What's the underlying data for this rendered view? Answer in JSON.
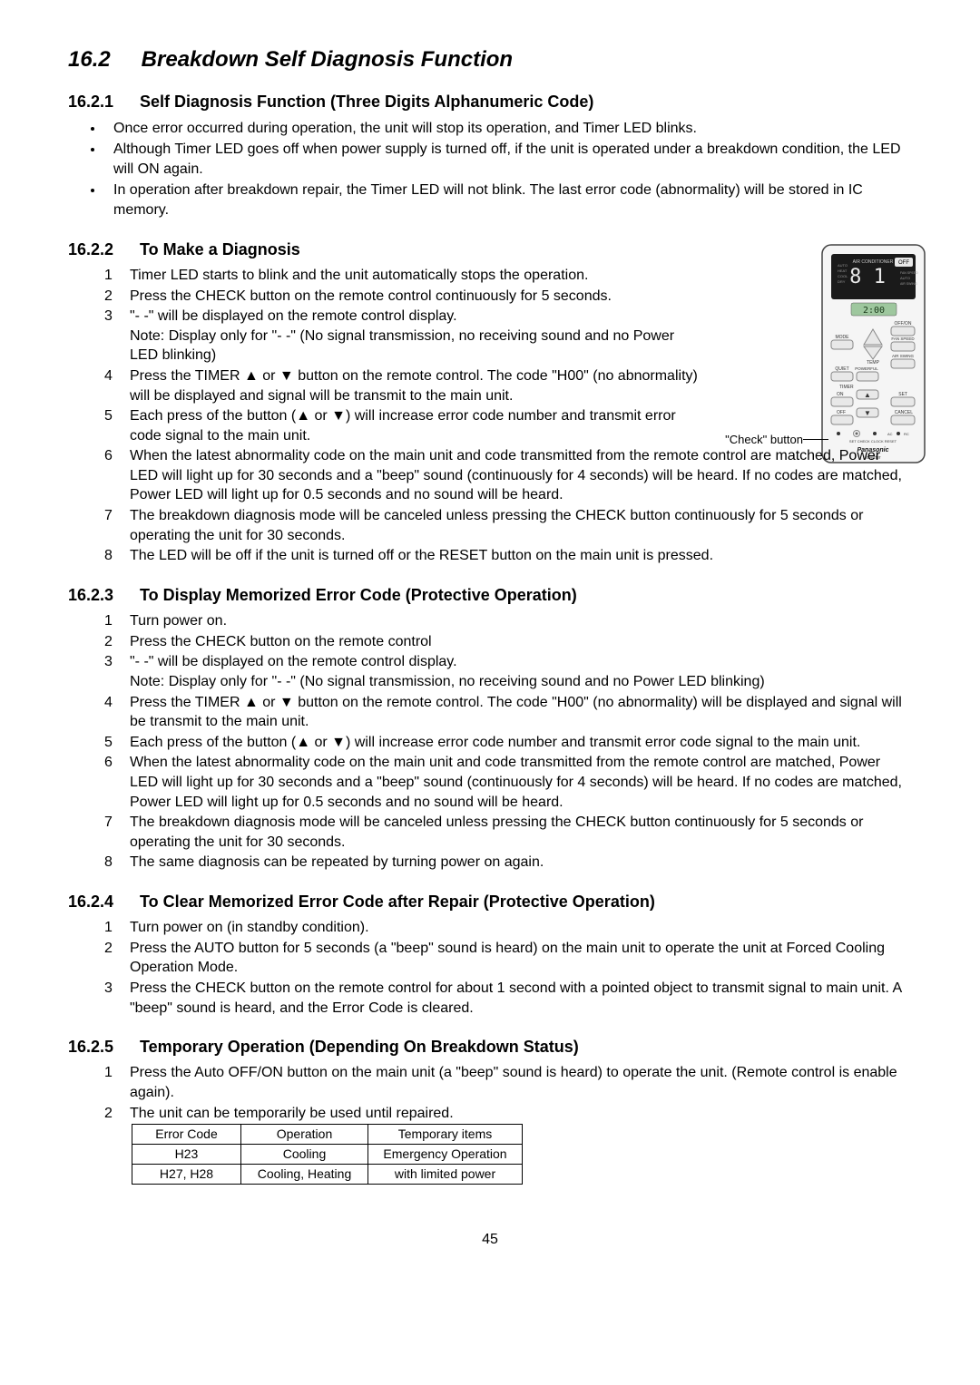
{
  "section": {
    "number": "16.2",
    "title": "Breakdown Self Diagnosis Function"
  },
  "sub1": {
    "num": "16.2.1",
    "title": "Self Diagnosis Function (Three Digits Alphanumeric Code)",
    "bullets": [
      "Once error occurred during operation, the unit will stop its operation, and Timer LED blinks.",
      "Although Timer LED goes off when power supply is turned off, if the unit is operated under a breakdown condition, the LED will ON again.",
      "In operation after breakdown repair, the Timer LED will not blink. The last error code (abnormality) will be stored in IC memory."
    ]
  },
  "sub2": {
    "num": "16.2.2",
    "title": "To Make a Diagnosis",
    "items": [
      "Timer LED starts to blink and the unit automatically stops the operation.",
      "Press the CHECK button on the remote control continuously for 5 seconds.",
      "\"- -\" will be displayed on the remote control display.\nNote: Display only for \"- -\" (No signal transmission, no receiving sound and no Power LED blinking)",
      "Press the TIMER ▲ or ▼ button on the remote control. The code \"H00\" (no abnormality) will be displayed and signal will be transmit to the main unit.",
      "Each press of the button (▲ or ▼) will increase error code number and transmit error code signal to the main unit.",
      "When the latest abnormality code on the main unit and code transmitted from the remote control are matched, Power LED will light up for 30 seconds and a \"beep\" sound (continuously for 4 seconds) will be heard. If no codes are matched, Power LED will light up for 0.5 seconds and no sound will be heard.",
      "The breakdown diagnosis mode will be canceled unless pressing the CHECK button continuously for 5 seconds or operating the unit for 30 seconds.",
      "The LED will be off if the unit is turned off or the RESET button on the main unit is pressed."
    ],
    "remote_label": "\"Check\" button"
  },
  "sub3": {
    "num": "16.2.3",
    "title": "To Display Memorized Error Code (Protective Operation)",
    "items": [
      "Turn power on.",
      "Press the CHECK button on the remote control",
      "\"- -\" will be displayed on the remote control display.\nNote: Display only for \"- -\" (No signal transmission, no receiving sound and no Power LED blinking)",
      "Press the TIMER ▲ or ▼ button on the remote control. The code \"H00\" (no abnormality) will be displayed and signal will be transmit to the main unit.",
      "Each press of the button (▲ or ▼) will increase error code number and transmit error code signal to the main unit.",
      "When the latest abnormality code on the main unit and code transmitted from the remote control are matched, Power LED will light up for 30 seconds and a \"beep\" sound (continuously for 4 seconds) will be heard. If no codes are matched, Power LED will light up for 0.5 seconds and no sound will be heard.",
      "The breakdown diagnosis mode will be canceled unless pressing the CHECK button continuously for 5 seconds or operating the unit for 30 seconds.",
      "The same diagnosis can be repeated by turning power on again."
    ]
  },
  "sub4": {
    "num": "16.2.4",
    "title": "To Clear Memorized Error Code after Repair (Protective Operation)",
    "items": [
      "Turn power on (in standby condition).",
      "Press the AUTO button for 5 seconds (a \"beep\" sound is heard) on the main unit to operate the unit at Forced Cooling Operation Mode.",
      "Press the CHECK button on the remote control for about 1 second with a pointed object to transmit signal to main unit. A \"beep\" sound is heard, and the Error Code is cleared."
    ]
  },
  "sub5": {
    "num": "16.2.5",
    "title": "Temporary Operation (Depending On Breakdown Status)",
    "items": [
      "Press the Auto OFF/ON button on the main unit (a \"beep\" sound is heard) to operate the unit. (Remote control is enable again).",
      "The unit can be temporarily be used until repaired."
    ],
    "table": {
      "columns": [
        "Error Code",
        "Operation",
        "Temporary items"
      ],
      "rows": [
        [
          "H23",
          "Cooling",
          "Emergency Operation"
        ],
        [
          "H27, H28",
          "Cooling, Heating",
          "with limited power"
        ]
      ],
      "col_widths": [
        "120px",
        "140px",
        "170px"
      ]
    }
  },
  "page_number": "45",
  "remote": {
    "body_fill": "#f5f5f5",
    "body_stroke": "#444",
    "screen_fill": "#1a1a1a",
    "lcd_fill": "#9ec79e",
    "button_fill": "#e8e8e8",
    "button_stroke": "#888",
    "brand": "Panasonic",
    "sub_brand": "Inverter",
    "display_top": "AIR CONDITIONER",
    "display_num": "8 1",
    "display_off": "OFF",
    "lcd_text": "2:00",
    "btn_offon": "OFF/ON",
    "lbl_mode": "MODE",
    "lbl_temp": "TEMP",
    "lbl_fan": "FAN SPEED",
    "lbl_swing": "AIR SWING",
    "lbl_quiet": "QUIET",
    "lbl_powerful": "POWERFUL",
    "lbl_timer": "TIMER",
    "lbl_on": "ON",
    "lbl_off": "OFF",
    "lbl_set": "SET",
    "lbl_cancel": "CANCEL",
    "lbl_setcheck": "SET  CHECK  CLOCK   RESET",
    "lbl_ac": "AC",
    "lbl_rc": "RC",
    "side_auto": "AUTO",
    "side_heat": "HEAT",
    "side_cool": "COOL",
    "side_dry": "DRY",
    "side_fan": "FAN SPEED",
    "side_auto2": "AUTO",
    "side_air": "AIR SWING"
  }
}
